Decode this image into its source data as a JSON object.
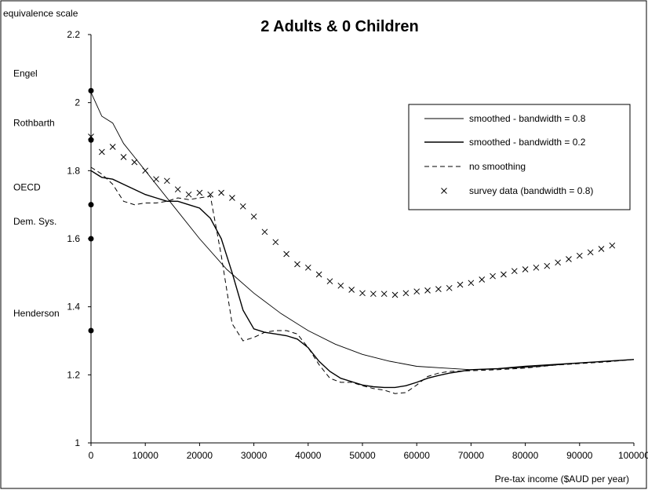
{
  "chart_data": {
    "type": "line",
    "title": "2 Adults & 0 Children",
    "ylabel": "equivalence scale",
    "xlabel": "Pre-tax income ($AUD per year)",
    "xlim": [
      0,
      100000
    ],
    "ylim": [
      1,
      2.2
    ],
    "x_ticks": [
      "0",
      "10000",
      "20000",
      "30000",
      "40000",
      "50000",
      "60000",
      "70000",
      "80000",
      "90000",
      "100000"
    ],
    "y_ticks": [
      "1",
      "1.2",
      "1.4",
      "1.6",
      "1.8",
      "2",
      "2.2"
    ],
    "grid": false,
    "legend_position": "right",
    "series": [
      {
        "name": "smoothed - bandwidth = 0.8",
        "style": "solid-thin",
        "x": [
          0,
          2000,
          4000,
          6000,
          8000,
          10000,
          15000,
          20000,
          25000,
          30000,
          35000,
          40000,
          45000,
          50000,
          55000,
          60000,
          65000,
          70000,
          75000,
          80000,
          85000,
          90000,
          95000,
          100000
        ],
        "y": [
          2.03,
          1.96,
          1.94,
          1.88,
          1.84,
          1.8,
          1.7,
          1.6,
          1.51,
          1.44,
          1.38,
          1.33,
          1.29,
          1.26,
          1.24,
          1.225,
          1.22,
          1.215,
          1.218,
          1.222,
          1.228,
          1.235,
          1.24,
          1.245
        ]
      },
      {
        "name": "smoothed - bandwidth = 0.2",
        "style": "solid",
        "x": [
          0,
          2000,
          4000,
          6000,
          8000,
          10000,
          12000,
          14000,
          16000,
          18000,
          20000,
          22000,
          24000,
          26000,
          28000,
          30000,
          32000,
          34000,
          36000,
          38000,
          40000,
          42000,
          44000,
          46000,
          48000,
          50000,
          52000,
          54000,
          56000,
          58000,
          60000,
          62000,
          64000,
          66000,
          68000,
          70000,
          75000,
          80000,
          85000,
          90000,
          95000,
          100000
        ],
        "y": [
          1.8,
          1.78,
          1.775,
          1.76,
          1.745,
          1.73,
          1.72,
          1.71,
          1.71,
          1.7,
          1.69,
          1.66,
          1.6,
          1.5,
          1.39,
          1.335,
          1.325,
          1.32,
          1.315,
          1.305,
          1.28,
          1.24,
          1.21,
          1.19,
          1.18,
          1.17,
          1.165,
          1.163,
          1.163,
          1.168,
          1.178,
          1.19,
          1.198,
          1.205,
          1.21,
          1.215,
          1.218,
          1.225,
          1.23,
          1.235,
          1.24,
          1.245
        ]
      },
      {
        "name": "no smoothing",
        "style": "dashed",
        "x": [
          0,
          2000,
          4000,
          6000,
          8000,
          10000,
          12000,
          14000,
          16000,
          18000,
          20000,
          22000,
          24000,
          26000,
          28000,
          30000,
          32000,
          34000,
          36000,
          38000,
          40000,
          42000,
          44000,
          46000,
          48000,
          50000,
          52000,
          54000,
          56000,
          58000,
          60000,
          62000,
          64000,
          66000,
          70000,
          75000,
          80000,
          85000,
          90000,
          95000,
          100000
        ],
        "y": [
          1.81,
          1.79,
          1.76,
          1.71,
          1.7,
          1.705,
          1.705,
          1.71,
          1.72,
          1.715,
          1.72,
          1.725,
          1.55,
          1.35,
          1.3,
          1.31,
          1.325,
          1.33,
          1.33,
          1.32,
          1.28,
          1.23,
          1.19,
          1.178,
          1.178,
          1.168,
          1.16,
          1.155,
          1.145,
          1.148,
          1.17,
          1.195,
          1.205,
          1.21,
          1.212,
          1.215,
          1.22,
          1.228,
          1.233,
          1.238,
          1.245
        ]
      },
      {
        "name": "survey data (bandwidth = 0.8)",
        "style": "markers-x",
        "x": [
          0,
          2000,
          4000,
          6000,
          8000,
          10000,
          12000,
          14000,
          16000,
          18000,
          20000,
          22000,
          24000,
          26000,
          28000,
          30000,
          32000,
          34000,
          36000,
          38000,
          40000,
          42000,
          44000,
          46000,
          48000,
          50000,
          52000,
          54000,
          56000,
          58000,
          60000,
          62000,
          64000,
          66000,
          68000,
          70000,
          72000,
          74000,
          76000,
          78000,
          80000,
          82000,
          84000,
          86000,
          88000,
          90000,
          92000,
          94000,
          96000
        ],
        "y": [
          1.9,
          1.855,
          1.87,
          1.84,
          1.825,
          1.8,
          1.775,
          1.77,
          1.745,
          1.73,
          1.735,
          1.73,
          1.735,
          1.72,
          1.695,
          1.665,
          1.62,
          1.59,
          1.555,
          1.525,
          1.515,
          1.495,
          1.475,
          1.462,
          1.45,
          1.44,
          1.438,
          1.438,
          1.435,
          1.44,
          1.445,
          1.448,
          1.452,
          1.455,
          1.465,
          1.47,
          1.48,
          1.49,
          1.495,
          1.505,
          1.51,
          1.515,
          1.52,
          1.53,
          1.54,
          1.55,
          1.56,
          1.57,
          1.58
        ]
      }
    ],
    "reference_points": [
      {
        "label": "Engel",
        "y": 2.035
      },
      {
        "label": "Rothbarth",
        "y": 1.89
      },
      {
        "label": "OECD",
        "y": 1.7
      },
      {
        "label": "Dem. Sys.",
        "y": 1.6
      },
      {
        "label": "Henderson",
        "y": 1.33
      }
    ]
  }
}
